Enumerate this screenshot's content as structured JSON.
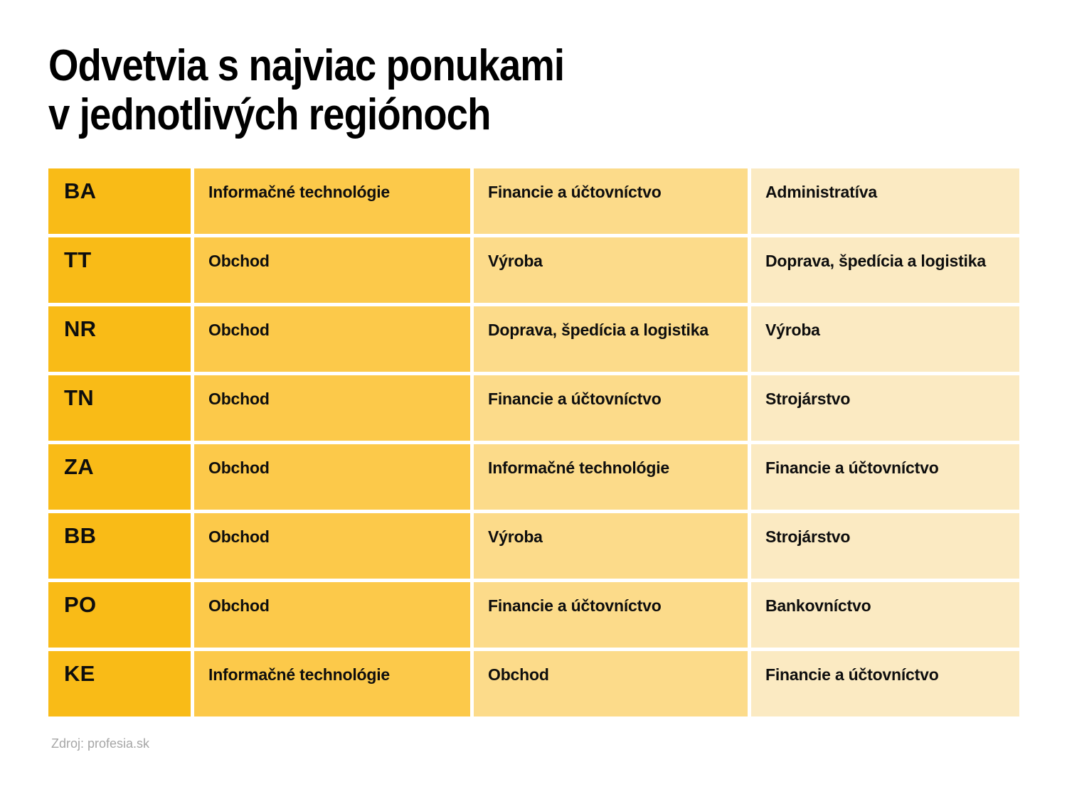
{
  "chart_data": {
    "type": "table",
    "title": "Odvetvia s najviac ponukami v jednotlivých regiónoch",
    "rows": [
      [
        "BA",
        "Informačné technológie",
        "Financie a účtovníctvo",
        "Administratíva"
      ],
      [
        "TT",
        "Obchod",
        "Výroba",
        "Doprava, špedícia a logistika"
      ],
      [
        "NR",
        "Obchod",
        "Doprava, špedícia a logistika",
        "Výroba"
      ],
      [
        "TN",
        "Obchod",
        "Financie a účtovníctvo",
        "Strojárstvo"
      ],
      [
        "ZA",
        "Obchod",
        "Informačné technológie",
        "Financie a účtovníctvo"
      ],
      [
        "BB",
        "Obchod",
        "Výroba",
        "Strojárstvo"
      ],
      [
        "PO",
        "Obchod",
        "Financie a účtovníctvo",
        "Bankovníctvo"
      ],
      [
        "KE",
        "Informačné technológie",
        "Obchod",
        "Financie a účtovníctvo"
      ]
    ],
    "source": "Zdroj: profesia.sk"
  },
  "header": {
    "title_line1": "Odvetvia s najviac ponukami",
    "title_line2": "v jednotlivých regiónoch"
  },
  "footer": {
    "source": "Zdroj: profesia.sk"
  },
  "colors": {
    "col_region": "#F9BB17",
    "col_first": "#FCC94A",
    "col_second": "#FCDB8A",
    "col_third": "#FBEAC2",
    "text": "#0E0E0E",
    "source_text": "#A6A6A6",
    "background": "#FFFFFF"
  }
}
